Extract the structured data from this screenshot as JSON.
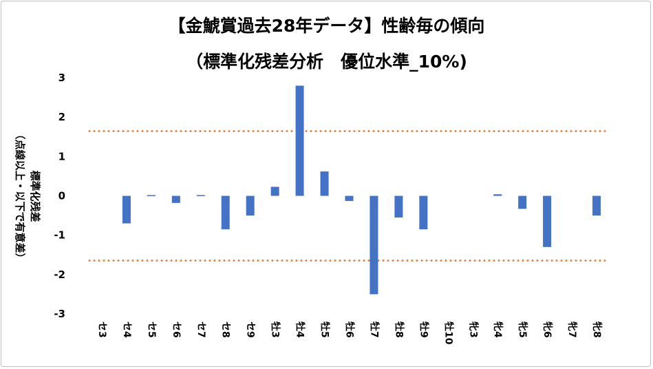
{
  "chart_data": {
    "type": "bar",
    "title": "【金鯱賞過去28年データ】性齢毎の傾向",
    "subtitle": "（標準化残差分析　優位水準_10%)",
    "ylabel_line1": "標準化残差",
    "ylabel_line2": "（点線以上・以下で有意差）",
    "xlabel": "",
    "ylim": [
      -3,
      3
    ],
    "yticks": [
      3,
      2,
      1,
      0,
      -1,
      -2,
      -3
    ],
    "categories": [
      "セ3",
      "セ4",
      "セ5",
      "セ6",
      "セ7",
      "セ8",
      "セ9",
      "牡3",
      "牡4",
      "牡5",
      "牡6",
      "牡7",
      "牡8",
      "牡9",
      "牡10",
      "牝3",
      "牝4",
      "牝5",
      "牝6",
      "牝7",
      "牝8"
    ],
    "values": [
      0,
      -0.7,
      0.02,
      -0.18,
      0.02,
      -0.85,
      -0.5,
      0.23,
      2.8,
      0.62,
      -0.13,
      -2.5,
      -0.55,
      -0.85,
      0,
      0,
      0.04,
      -0.33,
      -1.3,
      0,
      -0.5
    ],
    "thresholds": [
      1.645,
      -1.645
    ],
    "grid": false,
    "legend": "none",
    "bar_color": "#4472C4",
    "threshold_color": "#ED7D31"
  }
}
